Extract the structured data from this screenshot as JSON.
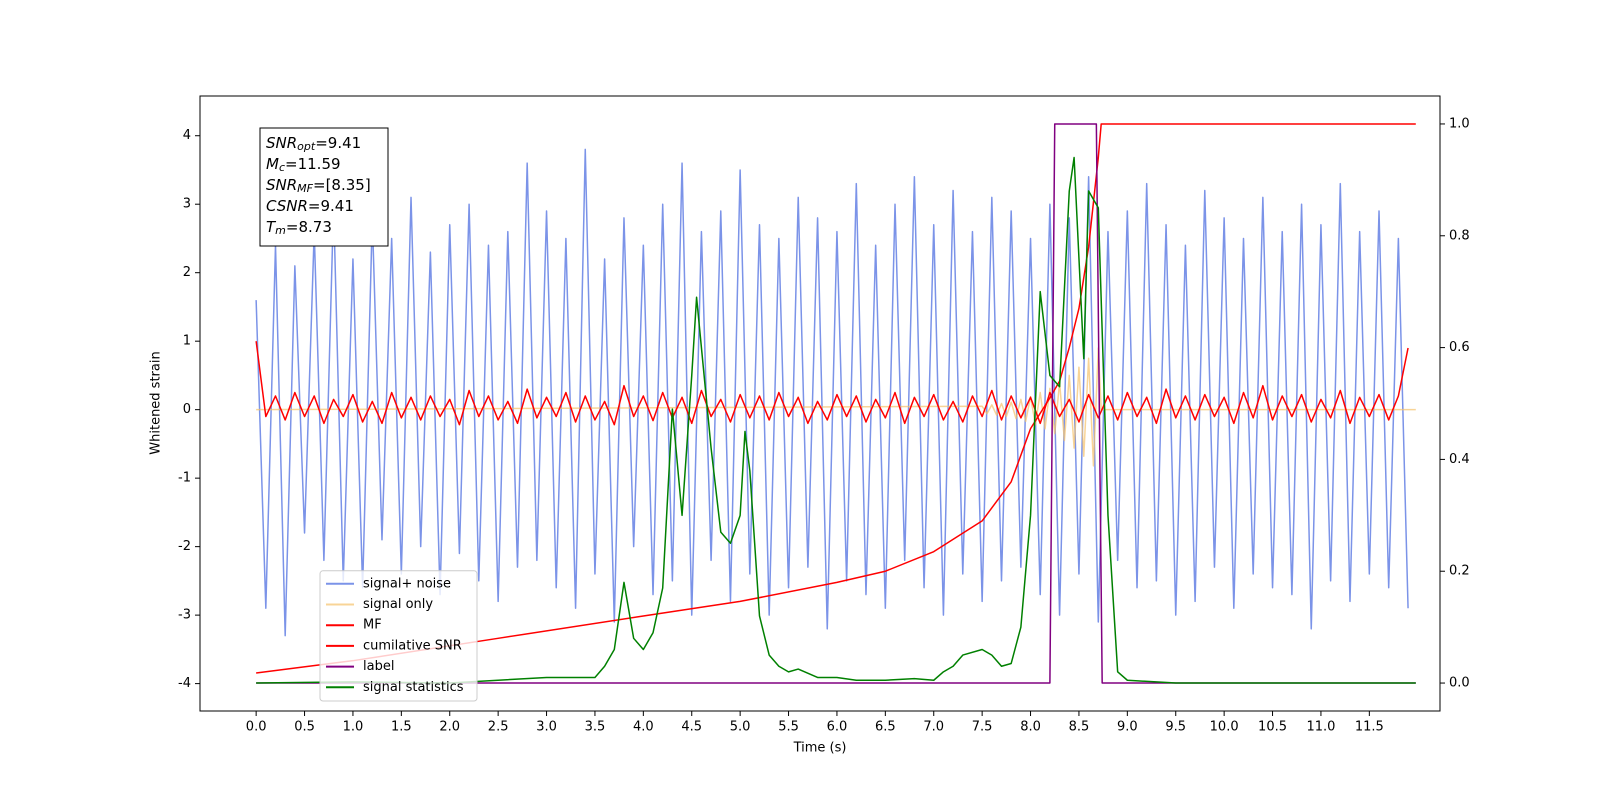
{
  "chart_data": {
    "type": "line",
    "xlabel": "Time (s)",
    "ylabel": "Whitened strain",
    "xlim": [
      -0.58,
      12.23
    ],
    "ylim": [
      -4.4,
      4.58
    ],
    "y2lim": [
      -0.05,
      1.05
    ],
    "xticks": [
      {
        "value": 0,
        "label": "0.0"
      },
      {
        "value": 0.5,
        "label": "0.5"
      },
      {
        "value": 1,
        "label": "1.0"
      },
      {
        "value": 1.5,
        "label": "1.5"
      },
      {
        "value": 2,
        "label": "2.0"
      },
      {
        "value": 2.5,
        "label": "2.5"
      },
      {
        "value": 3,
        "label": "3.0"
      },
      {
        "value": 3.5,
        "label": "3.5"
      },
      {
        "value": 4,
        "label": "4.0"
      },
      {
        "value": 4.5,
        "label": "4.5"
      },
      {
        "value": 5,
        "label": "5.0"
      },
      {
        "value": 5.5,
        "label": "5.5"
      },
      {
        "value": 6,
        "label": "6.0"
      },
      {
        "value": 6.5,
        "label": "6.5"
      },
      {
        "value": 7,
        "label": "7.0"
      },
      {
        "value": 7.5,
        "label": "7.5"
      },
      {
        "value": 8,
        "label": "8.0"
      },
      {
        "value": 8.5,
        "label": "8.5"
      },
      {
        "value": 9,
        "label": "9.0"
      },
      {
        "value": 9.5,
        "label": "9.5"
      },
      {
        "value": 10,
        "label": "10.0"
      },
      {
        "value": 10.5,
        "label": "10.5"
      },
      {
        "value": 11,
        "label": "11.0"
      },
      {
        "value": 11.5,
        "label": "11.5"
      }
    ],
    "yticks": [
      -4,
      -3,
      -2,
      -1,
      0,
      1,
      2,
      3,
      4
    ],
    "y2ticks": [
      {
        "value": 0,
        "label": "0.0"
      },
      {
        "value": 0.2,
        "label": "0.2"
      },
      {
        "value": 0.4,
        "label": "0.4"
      },
      {
        "value": 0.6,
        "label": "0.6"
      },
      {
        "value": 0.8,
        "label": "0.8"
      },
      {
        "value": 1,
        "label": "1.0"
      }
    ],
    "legend_loc": "lower left",
    "annotation": [
      {
        "symbol": "SNR",
        "subscript": "opt",
        "text": "=9.41"
      },
      {
        "symbol": "M",
        "subscript": "c",
        "text": "=11.59"
      },
      {
        "symbol": "SNR",
        "subscript": "MF",
        "text": "=[8.35]"
      },
      {
        "symbol": "CSNR",
        "text": "=9.41"
      },
      {
        "symbol": "T",
        "subscript": "m",
        "text": "=8.73"
      }
    ],
    "x": [
      0,
      0.1,
      0.2,
      0.3,
      0.4,
      0.5,
      0.6,
      0.7,
      0.8,
      0.9,
      1,
      1.1,
      1.2,
      1.3,
      1.4,
      1.5,
      1.6,
      1.7,
      1.8,
      1.9,
      2,
      2.1,
      2.2,
      2.3,
      2.4,
      2.5,
      2.6,
      2.7,
      2.8,
      2.9,
      3,
      3.1,
      3.2,
      3.3,
      3.4,
      3.5,
      3.6,
      3.7,
      3.8,
      3.9,
      4,
      4.1,
      4.2,
      4.3,
      4.4,
      4.5,
      4.6,
      4.7,
      4.8,
      4.9,
      5,
      5.1,
      5.2,
      5.3,
      5.4,
      5.5,
      5.6,
      5.7,
      5.8,
      5.9,
      6,
      6.1,
      6.2,
      6.3,
      6.4,
      6.5,
      6.6,
      6.7,
      6.8,
      6.9,
      7,
      7.1,
      7.2,
      7.3,
      7.4,
      7.5,
      7.6,
      7.7,
      7.8,
      7.9,
      8,
      8.1,
      8.2,
      8.3,
      8.4,
      8.5,
      8.6,
      8.7,
      8.8,
      8.9,
      9,
      9.1,
      9.2,
      9.3,
      9.4,
      9.5,
      9.6,
      9.7,
      9.8,
      9.9,
      10,
      10.1,
      10.2,
      10.3,
      10.4,
      10.5,
      10.6,
      10.7,
      10.8,
      10.9,
      11,
      11.1,
      11.2,
      11.3,
      11.4,
      11.5,
      11.6,
      11.7,
      11.8,
      11.9
    ],
    "series": [
      {
        "name": "signal+ noise",
        "color": "#7b93e8",
        "values": [
          1.6,
          -2.9,
          2.4,
          -3.3,
          2.1,
          -1.8,
          2.6,
          -2.2,
          3.0,
          -2.5,
          2.2,
          -2.6,
          2.8,
          -1.9,
          2.5,
          -2.4,
          3.1,
          -2.0,
          2.3,
          -2.7,
          2.7,
          -2.1,
          3.0,
          -2.5,
          2.4,
          -2.8,
          2.6,
          -2.3,
          3.6,
          -2.2,
          2.9,
          -2.6,
          2.5,
          -2.9,
          3.8,
          -2.4,
          2.2,
          -3.1,
          2.8,
          -2.0,
          2.4,
          -2.7,
          3.0,
          -2.5,
          3.6,
          -3.0,
          2.6,
          -2.2,
          2.9,
          -2.8,
          3.5,
          -2.4,
          2.7,
          -3.0,
          2.5,
          -2.6,
          3.1,
          -2.3,
          2.8,
          -3.2,
          2.6,
          -2.5,
          3.3,
          -2.7,
          2.4,
          -2.9,
          3.0,
          -2.2,
          3.4,
          -2.6,
          2.7,
          -3.0,
          3.2,
          -2.4,
          2.6,
          -2.8,
          3.1,
          -2.5,
          2.9,
          -2.3,
          2.5,
          -2.7,
          3.0,
          -3.0,
          2.8,
          -2.4,
          3.4,
          -3.1,
          2.6,
          -2.2,
          2.9,
          -2.6,
          3.3,
          -2.5,
          2.7,
          -3.0,
          2.4,
          -2.8,
          3.2,
          -2.3,
          2.8,
          -2.9,
          2.5,
          -2.4,
          3.1,
          -2.6,
          2.6,
          -2.7,
          3.0,
          -3.2,
          2.7,
          -2.5,
          3.3,
          -2.8,
          2.6,
          -2.4,
          2.9,
          -2.6,
          2.5,
          -2.9
        ]
      },
      {
        "name": "signal only",
        "color": "#f5c26b",
        "x": [
          0,
          7.5,
          7.55,
          7.6,
          7.65,
          7.7,
          7.75,
          7.8,
          7.85,
          7.9,
          7.95,
          8,
          8.05,
          8.1,
          8.15,
          8.2,
          8.25,
          8.3,
          8.35,
          8.4,
          8.45,
          8.5,
          8.55,
          8.6,
          8.65,
          8.7,
          8.73,
          11.98
        ],
        "values": [
          0,
          0.05,
          -0.06,
          0.07,
          -0.08,
          0.09,
          -0.1,
          0.11,
          -0.13,
          0.15,
          -0.17,
          0.19,
          -0.22,
          0.25,
          -0.28,
          0.31,
          -0.35,
          0.4,
          -0.45,
          0.5,
          -0.56,
          0.62,
          -0.68,
          0.75,
          -0.82,
          0.9,
          0,
          0
        ]
      },
      {
        "name": "MF",
        "color": "#ff0000",
        "values": [
          1.0,
          -0.1,
          0.2,
          -0.15,
          0.25,
          -0.1,
          0.2,
          -0.2,
          0.15,
          -0.1,
          0.22,
          -0.18,
          0.12,
          -0.2,
          0.25,
          -0.12,
          0.18,
          -0.15,
          0.2,
          -0.1,
          0.15,
          -0.22,
          0.28,
          -0.1,
          0.2,
          -0.15,
          0.12,
          -0.2,
          0.3,
          -0.12,
          0.18,
          -0.1,
          0.25,
          -0.18,
          0.2,
          -0.15,
          0.12,
          -0.22,
          0.35,
          -0.1,
          0.2,
          -0.16,
          0.25,
          -0.12,
          0.18,
          -0.2,
          0.28,
          -0.1,
          0.15,
          -0.18,
          0.22,
          -0.12,
          0.2,
          -0.15,
          0.25,
          -0.1,
          0.18,
          -0.2,
          0.12,
          -0.15,
          0.22,
          -0.1,
          0.2,
          -0.18,
          0.15,
          -0.12,
          0.25,
          -0.2,
          0.18,
          -0.1,
          0.22,
          -0.15,
          0.12,
          -0.18,
          0.2,
          -0.1,
          0.28,
          -0.15,
          0.2,
          -0.12,
          0.18,
          -0.2,
          0.25,
          -0.1,
          0.15,
          -0.18,
          0.22,
          -0.12,
          0.2,
          -0.15,
          0.25,
          -0.1,
          0.18,
          -0.2,
          0.3,
          -0.12,
          0.2,
          -0.15,
          0.22,
          -0.1,
          0.18,
          -0.2,
          0.25,
          -0.12,
          0.35,
          -0.15,
          0.2,
          -0.1,
          0.22,
          -0.18,
          0.15,
          -0.12,
          0.28,
          -0.2,
          0.18,
          -0.1,
          0.22,
          -0.15,
          0.2,
          0.9
        ]
      },
      {
        "name": "cumilative SNR",
        "color": "#ff0000",
        "axis": "y2",
        "x": [
          0,
          1,
          2.5,
          4,
          5,
          6,
          6.5,
          7,
          7.5,
          7.8,
          8,
          8.2,
          8.3,
          8.4,
          8.5,
          8.6,
          8.65,
          8.7,
          8.73,
          11.98
        ],
        "values": [
          0.018,
          0.04,
          0.08,
          0.12,
          0.146,
          0.18,
          0.2,
          0.235,
          0.29,
          0.36,
          0.455,
          0.51,
          0.54,
          0.6,
          0.67,
          0.78,
          0.86,
          0.94,
          1.0,
          1.0
        ]
      },
      {
        "name": "label",
        "color": "#800080",
        "axis": "y2",
        "x": [
          0,
          8.2,
          8.25,
          8.68,
          8.74,
          11.98
        ],
        "values": [
          0,
          0,
          1,
          1,
          0,
          0
        ]
      },
      {
        "name": "signal statistics",
        "color": "#008000",
        "axis": "y2",
        "x": [
          0,
          1,
          2,
          3,
          3.5,
          3.6,
          3.7,
          3.8,
          3.9,
          4,
          4.1,
          4.2,
          4.3,
          4.4,
          4.5,
          4.55,
          4.7,
          4.8,
          4.9,
          5,
          5.05,
          5.1,
          5.2,
          5.3,
          5.4,
          5.5,
          5.6,
          5.8,
          6,
          6.2,
          6.5,
          6.8,
          7,
          7.1,
          7.2,
          7.3,
          7.5,
          7.6,
          7.7,
          7.8,
          7.9,
          8,
          8.1,
          8.2,
          8.3,
          8.4,
          8.45,
          8.55,
          8.6,
          8.7,
          8.8,
          8.9,
          9,
          9.5,
          11.98
        ],
        "values": [
          0,
          0.002,
          0,
          0.01,
          0.01,
          0.03,
          0.06,
          0.18,
          0.08,
          0.06,
          0.09,
          0.17,
          0.49,
          0.3,
          0.55,
          0.69,
          0.42,
          0.27,
          0.25,
          0.3,
          0.45,
          0.38,
          0.12,
          0.05,
          0.03,
          0.02,
          0.025,
          0.01,
          0.01,
          0.005,
          0.005,
          0.008,
          0.005,
          0.02,
          0.03,
          0.05,
          0.06,
          0.05,
          0.03,
          0.035,
          0.1,
          0.3,
          0.7,
          0.55,
          0.53,
          0.88,
          0.94,
          0.58,
          0.88,
          0.85,
          0.3,
          0.02,
          0.005,
          0,
          0
        ]
      }
    ]
  }
}
